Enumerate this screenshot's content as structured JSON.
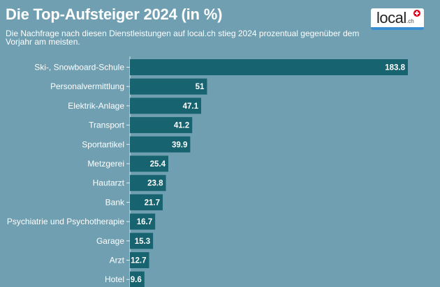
{
  "header": {
    "title": "Die Top-Aufsteiger 2024 (in %)",
    "subtitle": "Die Nachfrage nach diesen Dienstleistungen auf local.ch stieg 2024 prozentual gegenüber dem Vorjahr am meisten."
  },
  "logo": {
    "text": "local",
    "suffix": ".ch",
    "icon": "swiss-cross-icon"
  },
  "colors": {
    "background": "#6f9fb0",
    "bar": "#17636f",
    "accent": "#e2001a"
  },
  "chart_data": {
    "type": "bar",
    "orientation": "horizontal",
    "title": "Die Top-Aufsteiger 2024 (in %)",
    "xlabel": "",
    "ylabel": "",
    "categories": [
      "Ski-, Snowboard-Schule",
      "Personalvermittlung",
      "Elektrik-Anlage",
      "Transport",
      "Sportartikel",
      "Metzgerei",
      "Hautarzt",
      "Bank",
      "Psychiatrie und Psychotherapie",
      "Garage",
      "Arzt",
      "Hotel"
    ],
    "values": [
      183.8,
      51,
      47.1,
      41.2,
      39.9,
      25.4,
      23.8,
      21.7,
      16.7,
      15.3,
      12.7,
      9.6
    ],
    "value_labels": [
      "183.8",
      "51",
      "47.1",
      "41.2",
      "39.9",
      "25.4",
      "23.8",
      "21.7",
      "16.7",
      "15.3",
      "12.7",
      "9.6"
    ],
    "xlim": [
      0,
      183.8
    ],
    "grid": false,
    "legend": "none"
  }
}
